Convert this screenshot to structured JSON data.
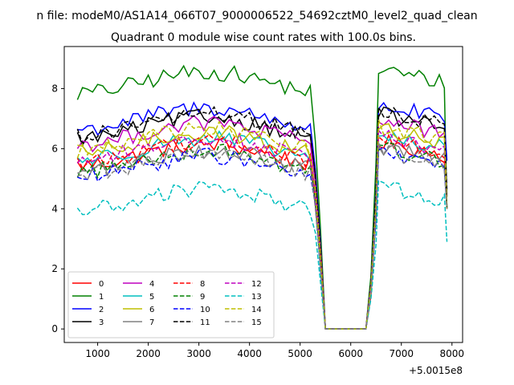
{
  "chart_data": {
    "type": "line",
    "suptitle": "n file: modeM0/AS1A14_066T07_9000006522_54692cztM0_level2_quad_clean",
    "title": "Quadrant 0 module wise count rates with 100.0s bins.",
    "offset_label": "+5.0015e8",
    "xlabel": "",
    "ylabel": "",
    "xlim": [
      340,
      8210
    ],
    "ylim": [
      -0.45,
      9.4
    ],
    "xticks": [
      1000,
      2000,
      3000,
      4000,
      5000,
      6000,
      7000,
      8000
    ],
    "xtick_labels": [
      "1000",
      "2000",
      "3000",
      "4000",
      "5000",
      "6000",
      "7000",
      "8000"
    ],
    "yticks": [
      0,
      2,
      4,
      6,
      8
    ],
    "ytick_labels": [
      "0",
      "2",
      "4",
      "6",
      "8"
    ],
    "legend_position": "lower-left",
    "x_segments": [
      {
        "start": 600,
        "end": 5200
      },
      {
        "start": 6550,
        "end": 7850
      }
    ],
    "gap": {
      "x": [
        5300,
        5400,
        5500,
        5600,
        5700,
        5800,
        5900,
        6000,
        6100,
        6200,
        6300,
        6400,
        6500
      ],
      "fractions": [
        0.75,
        0.4,
        0,
        0,
        0,
        0,
        0,
        0,
        0,
        0,
        0,
        0.22,
        0.68
      ]
    },
    "series": [
      {
        "name": "0",
        "color": "#ff0000",
        "dash": "solid",
        "level": 5.8,
        "end": 4.1
      },
      {
        "name": "1",
        "color": "#008000",
        "dash": "solid",
        "level": 8.2,
        "end": 4.0
      },
      {
        "name": "2",
        "color": "#0000ff",
        "dash": "solid",
        "level": 7.0,
        "end": 5.6
      },
      {
        "name": "3",
        "color": "#000000",
        "dash": "solid",
        "level": 6.7,
        "end": 4.4
      },
      {
        "name": "4",
        "color": "#bf00bf",
        "dash": "solid",
        "level": 6.5,
        "end": 4.0
      },
      {
        "name": "5",
        "color": "#00bfbf",
        "dash": "solid",
        "level": 6.0,
        "end": 4.0
      },
      {
        "name": "6",
        "color": "#bfbf00",
        "dash": "solid",
        "level": 6.2,
        "end": 4.0
      },
      {
        "name": "7",
        "color": "#808080",
        "dash": "solid",
        "level": 5.6,
        "end": 4.0
      },
      {
        "name": "8",
        "color": "#ff0000",
        "dash": "dashed",
        "level": 5.9,
        "end": 4.0
      },
      {
        "name": "9",
        "color": "#008000",
        "dash": "dashed",
        "level": 5.6,
        "end": 4.0
      },
      {
        "name": "10",
        "color": "#0000ff",
        "dash": "dashed",
        "level": 5.4,
        "end": 4.0
      },
      {
        "name": "11",
        "color": "#000000",
        "dash": "dashed",
        "level": 6.8,
        "end": 4.6
      },
      {
        "name": "12",
        "color": "#bf00bf",
        "dash": "dashed",
        "level": 6.0,
        "end": 4.0
      },
      {
        "name": "13",
        "color": "#00bfbf",
        "dash": "dashed",
        "level": 4.3,
        "end": 2.9
      },
      {
        "name": "14",
        "color": "#bfbf00",
        "dash": "dashed",
        "level": 6.3,
        "end": 4.0
      },
      {
        "name": "15",
        "color": "#808080",
        "dash": "dashed",
        "level": 5.5,
        "end": 4.0
      }
    ]
  }
}
